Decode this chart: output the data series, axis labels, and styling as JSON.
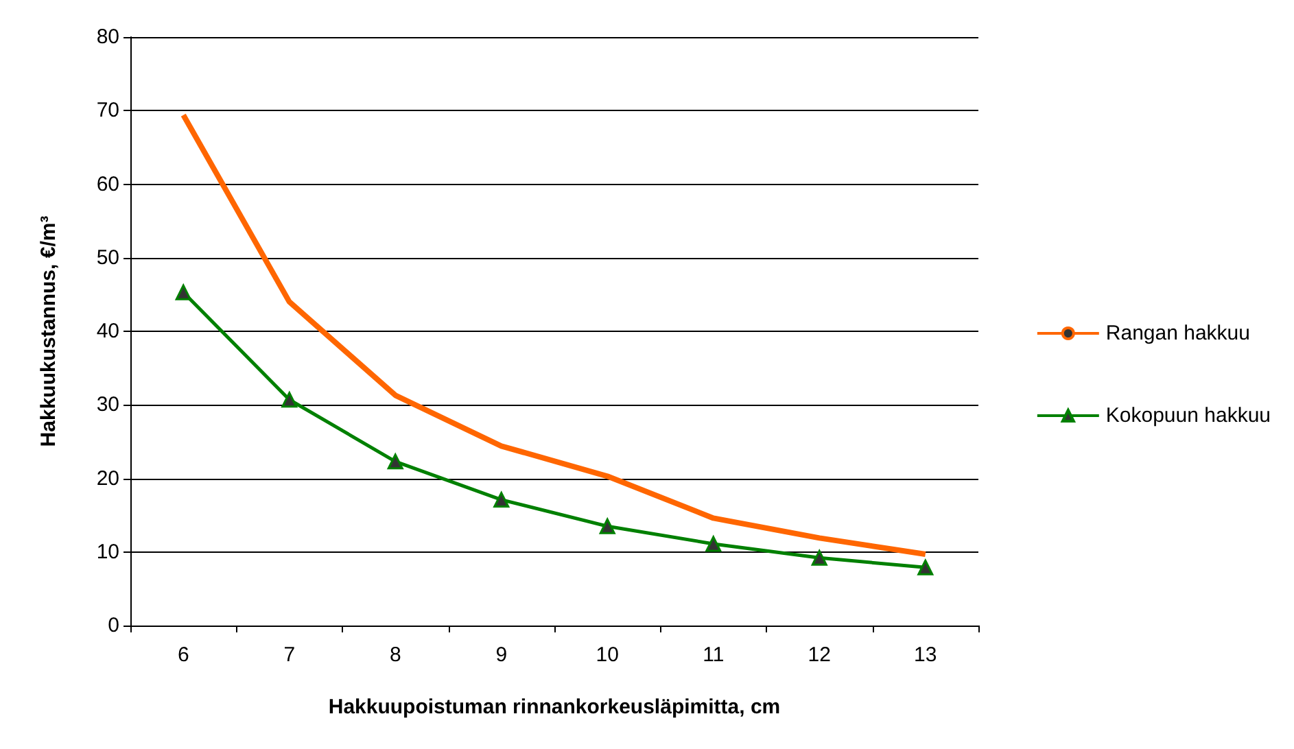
{
  "chart_data": {
    "type": "line",
    "xlabel": "Hakkuupoistuman rinnankorkeusläpimitta, cm",
    "ylabel": "Hakkuukustannus, €/m³",
    "categories": [
      "6",
      "7",
      "8",
      "9",
      "10",
      "11",
      "12",
      "13"
    ],
    "series": [
      {
        "name": "Rangan hakkuu",
        "color": "#ff6600",
        "marker": "none",
        "values": [
          69.4,
          44.0,
          31.3,
          24.4,
          20.3,
          14.6,
          11.9,
          9.7
        ]
      },
      {
        "name": "Kokopuun hakkuu",
        "color": "#008000",
        "marker": "triangle",
        "values": [
          45.3,
          30.7,
          22.3,
          17.1,
          13.5,
          11.1,
          9.2,
          7.9
        ]
      }
    ],
    "ylim": [
      0,
      80
    ],
    "yticks": [
      0,
      10,
      20,
      30,
      40,
      50,
      60,
      70,
      80
    ],
    "grid": "y",
    "legend": "right"
  }
}
